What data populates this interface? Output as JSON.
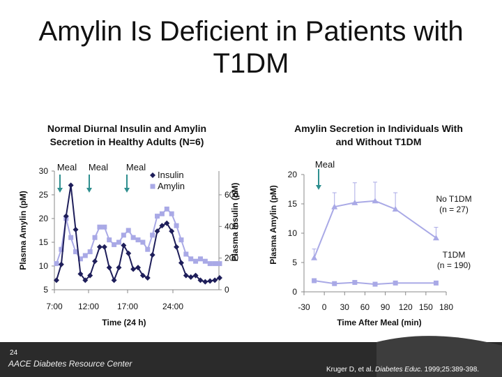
{
  "slide": {
    "title": "Amylin Is Deficient in Patients with T1DM",
    "page_number": "24",
    "footer_brand": "AACE Diabetes Resource Center",
    "citation_prefix": "Kruger D, et al. ",
    "citation_journal": "Diabetes Educ.",
    "citation_suffix": " 1999;25:389-398.",
    "colors": {
      "dark_band": "#2b2b2b",
      "navy": "#1e1e5a",
      "lavender": "#a9a9e6",
      "teal": "#2f8f8f"
    }
  },
  "chart_data": [
    {
      "type": "line",
      "title": "Normal Diurnal Insulin and Amylin Secretion in Healthy Adults (N=6)",
      "xlabel": "Time (24 h)",
      "ylabel": "Plasma Amylin (pM)",
      "y2label": "Plasma Insulin (pM)",
      "x_ticks": [
        "7:00",
        "12:00",
        "17:00",
        "24:00"
      ],
      "y_ticks": [
        "5",
        "10",
        "15",
        "20",
        "25",
        "30"
      ],
      "y2_ticks": [
        "0",
        "200",
        "400",
        "600"
      ],
      "ylim": [
        5,
        30
      ],
      "y2lim": [
        0,
        750
      ],
      "annotations": [
        "Meal",
        "Meal",
        "Meal"
      ],
      "series": [
        {
          "name": "Insulin",
          "axis": "y2",
          "color": "#1e1e5a",
          "marker": "diamond",
          "x": [
            0,
            1,
            2,
            3,
            4,
            5,
            6,
            7,
            8,
            9,
            10,
            11,
            12,
            13,
            14,
            15,
            16,
            17,
            18,
            19,
            20,
            21,
            22,
            23,
            24,
            25,
            26,
            27,
            28,
            29,
            30,
            31,
            32,
            33,
            34
          ],
          "values": [
            60,
            160,
            465,
            660,
            380,
            100,
            60,
            90,
            180,
            270,
            270,
            140,
            60,
            140,
            280,
            230,
            130,
            140,
            90,
            75,
            220,
            370,
            405,
            420,
            370,
            270,
            170,
            90,
            80,
            90,
            60,
            50,
            55,
            60,
            75
          ]
        },
        {
          "name": "Amylin",
          "axis": "y",
          "color": "#a9a9e6",
          "marker": "square",
          "x": [
            0,
            1,
            2,
            3,
            4,
            5,
            6,
            7,
            8,
            9,
            10,
            11,
            12,
            13,
            14,
            15,
            16,
            17,
            18,
            19,
            20,
            21,
            22,
            23,
            24,
            25,
            26,
            27,
            28,
            29,
            30,
            31,
            32,
            33,
            34
          ],
          "values": [
            10.5,
            13.5,
            20,
            16,
            13,
            11.5,
            12.2,
            13,
            16,
            18.2,
            18.2,
            15.5,
            14.5,
            15,
            16.5,
            17.5,
            16,
            15.5,
            15,
            13.5,
            16.5,
            20.5,
            21,
            22,
            21,
            18.5,
            15.5,
            12.5,
            11.5,
            11,
            11.5,
            11,
            10.5,
            10.5,
            10.5
          ]
        }
      ]
    },
    {
      "type": "line",
      "title": "Amylin Secretion in Individuals With and Without T1DM",
      "xlabel": "Time After Meal (min)",
      "ylabel": "Plasma Amylin (pM)",
      "x_ticks": [
        "-30",
        "0",
        "30",
        "60",
        "90",
        "120",
        "150",
        "180"
      ],
      "y_ticks": [
        "0",
        "5",
        "10",
        "15",
        "20"
      ],
      "xlim": [
        -30,
        180
      ],
      "ylim": [
        0,
        20
      ],
      "annotations": [
        "Meal"
      ],
      "series": [
        {
          "name": "No T1DM (n = 27)",
          "color": "#a9a9e6",
          "marker": "triangle",
          "x": [
            -15,
            15,
            45,
            75,
            105,
            165
          ],
          "values": [
            5.8,
            14.5,
            15.2,
            15.5,
            14.1,
            9.2
          ],
          "error": [
            1.5,
            2.4,
            3.4,
            3.2,
            2.8,
            1.8
          ]
        },
        {
          "name": "T1DM (n = 190)",
          "color": "#a9a9e6",
          "marker": "square",
          "x": [
            -15,
            15,
            45,
            75,
            105,
            165
          ],
          "values": [
            1.9,
            1.4,
            1.6,
            1.3,
            1.5,
            1.5
          ],
          "error": [
            0.3,
            0.3,
            0.3,
            0.3,
            0.3,
            0.3
          ]
        }
      ]
    }
  ]
}
